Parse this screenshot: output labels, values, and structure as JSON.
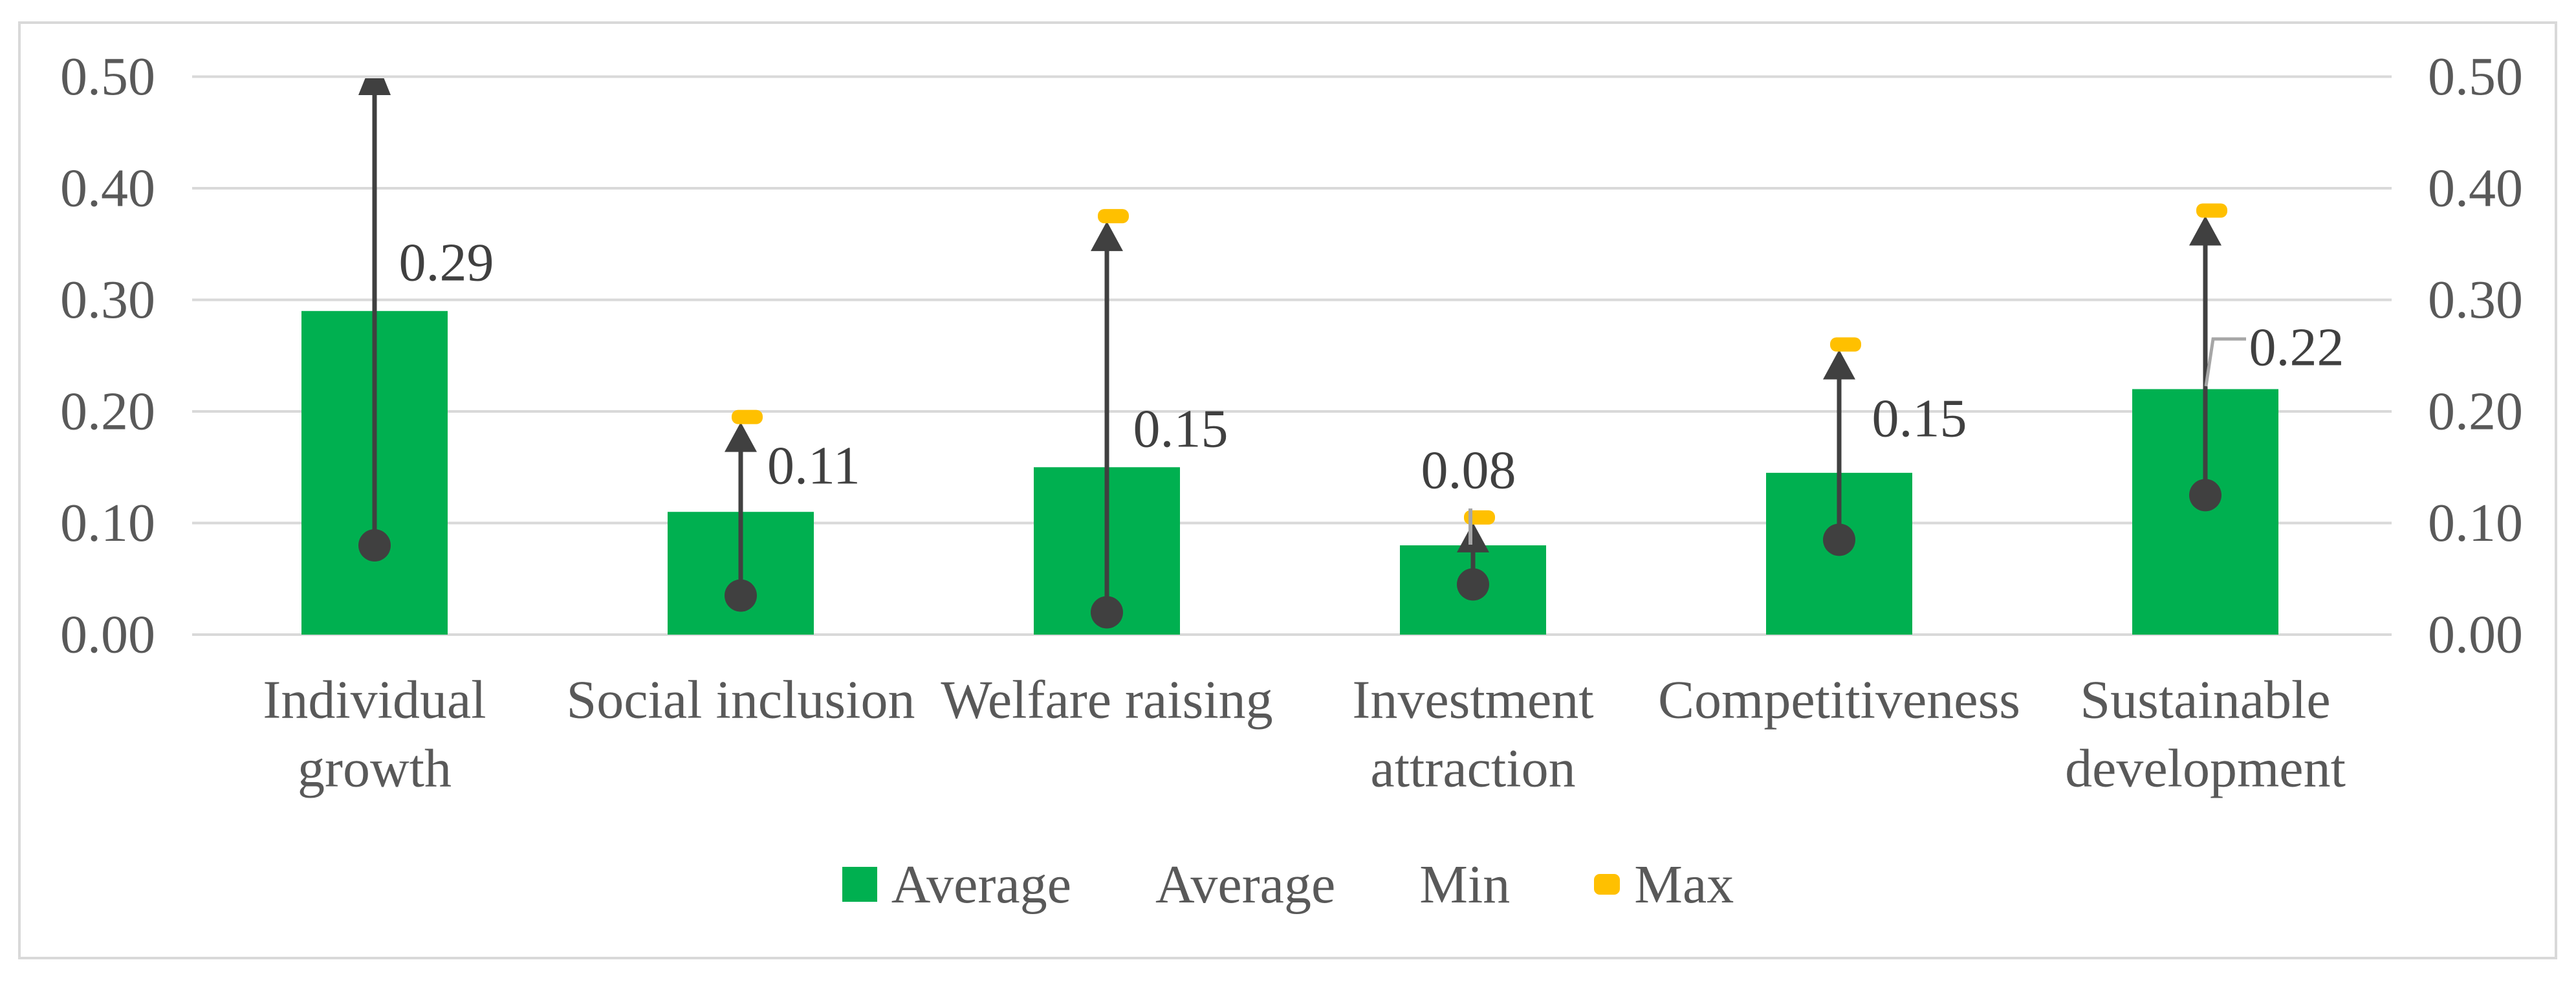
{
  "chart_data": {
    "type": "bar",
    "title": "",
    "categories": [
      "Individual growth",
      "Social inclusion",
      "Welfare raising",
      "Investment attraction",
      "Competitiveness",
      "Sustainable development"
    ],
    "category_lines": [
      [
        "Individual",
        "growth"
      ],
      [
        "Social inclusion"
      ],
      [
        "Welfare raising"
      ],
      [
        "Investment",
        "attraction"
      ],
      [
        "Competitiveness"
      ],
      [
        "Sustainable",
        "development"
      ]
    ],
    "series": [
      {
        "name": "Average",
        "type": "bar",
        "color": "#00B050",
        "values": [
          0.29,
          0.11,
          0.15,
          0.08,
          0.145,
          0.22
        ],
        "data_labels": [
          "0.29",
          "0.11",
          "0.15",
          "0.08",
          "0.15",
          "0.22"
        ]
      },
      {
        "name": "Average",
        "type": "point",
        "marker": "none",
        "values": []
      },
      {
        "name": "Min",
        "type": "point",
        "marker": "circle",
        "color": "#404040",
        "values": [
          0.08,
          0.035,
          0.02,
          0.045,
          0.085,
          0.125
        ]
      },
      {
        "name": "Max",
        "type": "point",
        "marker": "dash",
        "color": "#FFC000",
        "values": [
          0.5,
          0.195,
          0.375,
          0.105,
          0.26,
          0.38
        ],
        "marker_visible": [
          false,
          true,
          true,
          true,
          true,
          true
        ]
      }
    ],
    "arrows": {
      "description": "vertical arrow from Min up to Max",
      "color": "#404040",
      "clipped_at_top": [
        true,
        false,
        false,
        false,
        false,
        false
      ]
    },
    "y_axis": {
      "ticks": [
        "0.00",
        "0.10",
        "0.20",
        "0.30",
        "0.40",
        "0.50"
      ],
      "range": [
        0,
        0.5
      ],
      "sides": [
        "left",
        "right"
      ]
    },
    "grid": true,
    "legend_position": "bottom"
  },
  "legend": {
    "items": [
      {
        "label": "Average",
        "swatch": "green-square"
      },
      {
        "label": "Average",
        "swatch": "none"
      },
      {
        "label": "Min",
        "swatch": "none"
      },
      {
        "label": "Max",
        "swatch": "gold-dash"
      }
    ]
  },
  "colors": {
    "bar_green": "#00B050",
    "marker_dark": "#404040",
    "max_gold": "#FFC000",
    "gridline": "#D9D9D9",
    "axis_text": "#595959",
    "label_text": "#404040",
    "leader_line": "#A6A6A6",
    "border": "#D9D9D9",
    "background": "#FFFFFF"
  }
}
